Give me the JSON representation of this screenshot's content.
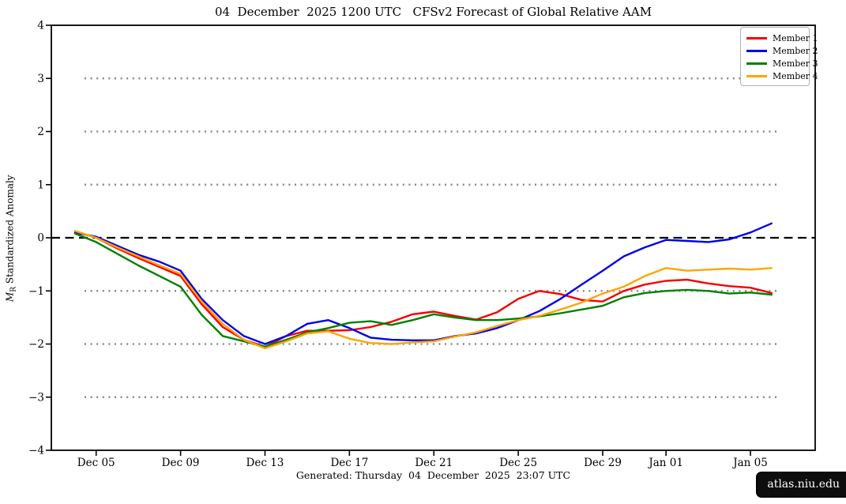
{
  "chart_data": {
    "type": "line",
    "title": "04  December  2025 1200 UTC   CFSv2 Forecast of Global Relative AAM",
    "ylabel": {
      "var": "M",
      "sub": "R",
      "rest": " Standardized Anomaly"
    },
    "ylim": [
      -4,
      4
    ],
    "yticks": [
      {
        "value": 4,
        "label": "4"
      },
      {
        "value": 3,
        "label": "3"
      },
      {
        "value": 2,
        "label": "2"
      },
      {
        "value": 1,
        "label": "1"
      },
      {
        "value": 0,
        "label": "0"
      },
      {
        "value": -1,
        "label": "−1"
      },
      {
        "value": -2,
        "label": "−2"
      },
      {
        "value": -3,
        "label": "−3"
      },
      {
        "value": -4,
        "label": "−4"
      }
    ],
    "grid": {
      "dotted_levels": [
        3,
        2,
        1,
        -1,
        -2,
        -3
      ],
      "zero_line_dashed": true,
      "dotted_color": "#8a8a8a",
      "zero_color": "#000000"
    },
    "legend_position": "upper right",
    "dates": [
      "Dec 04",
      "Dec 05",
      "Dec 06",
      "Dec 07",
      "Dec 08",
      "Dec 09",
      "Dec 10",
      "Dec 11",
      "Dec 12",
      "Dec 13",
      "Dec 14",
      "Dec 15",
      "Dec 16",
      "Dec 17",
      "Dec 18",
      "Dec 19",
      "Dec 20",
      "Dec 21",
      "Dec 22",
      "Dec 23",
      "Dec 24",
      "Dec 25",
      "Dec 26",
      "Dec 27",
      "Dec 28",
      "Dec 29",
      "Dec 30",
      "Dec 31",
      "Jan 01",
      "Jan 02",
      "Jan 03",
      "Jan 04",
      "Jan 05",
      "Jan 06"
    ],
    "xticks": [
      {
        "index": 1,
        "label": "Dec 05"
      },
      {
        "index": 5,
        "label": "Dec 09"
      },
      {
        "index": 9,
        "label": "Dec 13"
      },
      {
        "index": 13,
        "label": "Dec 17"
      },
      {
        "index": 17,
        "label": "Dec 21"
      },
      {
        "index": 21,
        "label": "Dec 25"
      },
      {
        "index": 25,
        "label": "Dec 29"
      },
      {
        "index": 28,
        "label": "Jan 01"
      },
      {
        "index": 32,
        "label": "Jan 05"
      }
    ],
    "series": [
      {
        "name": "Member 1",
        "color": "#f40000",
        "values": [
          0.12,
          0.0,
          -0.2,
          -0.38,
          -0.55,
          -0.72,
          -1.25,
          -1.68,
          -1.92,
          -2.05,
          -1.85,
          -1.75,
          -1.75,
          -1.74,
          -1.68,
          -1.58,
          -1.44,
          -1.39,
          -1.47,
          -1.54,
          -1.4,
          -1.15,
          -1.0,
          -1.06,
          -1.17,
          -1.2,
          -1.0,
          -0.88,
          -0.81,
          -0.79,
          -0.86,
          -0.91,
          -0.94,
          -1.04
        ]
      },
      {
        "name": "Member 2",
        "color": "#0000ee",
        "values": [
          0.1,
          0.02,
          -0.15,
          -0.32,
          -0.45,
          -0.62,
          -1.15,
          -1.55,
          -1.85,
          -2.0,
          -1.85,
          -1.62,
          -1.55,
          -1.7,
          -1.88,
          -1.92,
          -1.93,
          -1.93,
          -1.85,
          -1.8,
          -1.7,
          -1.55,
          -1.38,
          -1.15,
          -0.88,
          -0.62,
          -0.35,
          -0.18,
          -0.04,
          -0.06,
          -0.08,
          -0.03,
          0.1,
          0.27
        ]
      },
      {
        "name": "Member 3",
        "color": "#008000",
        "values": [
          0.08,
          -0.08,
          -0.3,
          -0.52,
          -0.72,
          -0.92,
          -1.45,
          -1.85,
          -1.95,
          -2.05,
          -1.92,
          -1.78,
          -1.7,
          -1.6,
          -1.57,
          -1.64,
          -1.55,
          -1.44,
          -1.5,
          -1.55,
          -1.55,
          -1.52,
          -1.48,
          -1.42,
          -1.35,
          -1.28,
          -1.12,
          -1.04,
          -1.0,
          -0.98,
          -1.0,
          -1.05,
          -1.03,
          -1.07
        ]
      },
      {
        "name": "Member 4",
        "color": "#ffa500",
        "values": [
          0.13,
          0.0,
          -0.18,
          -0.35,
          -0.52,
          -0.68,
          -1.2,
          -1.62,
          -1.92,
          -2.08,
          -1.95,
          -1.8,
          -1.76,
          -1.9,
          -1.98,
          -2.0,
          -1.97,
          -1.95,
          -1.86,
          -1.78,
          -1.66,
          -1.55,
          -1.47,
          -1.35,
          -1.22,
          -1.05,
          -0.92,
          -0.72,
          -0.57,
          -0.62,
          -0.6,
          -0.58,
          -0.6,
          -0.57
        ]
      }
    ]
  },
  "footer": {
    "generated": "Generated: Thursday  04  December  2025  23:07 UTC",
    "badge": "atlas.niu.edu"
  }
}
